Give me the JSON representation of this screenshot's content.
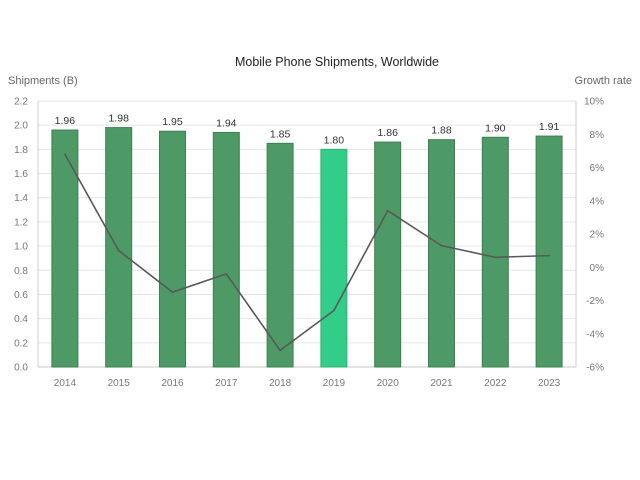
{
  "chart_data": {
    "type": "bar",
    "title": "Mobile Phone Shipments, Worldwide",
    "ylabel": "Shipments (B)",
    "y2label": "Growth rate",
    "categories": [
      "2014",
      "2015",
      "2016",
      "2017",
      "2018",
      "2019",
      "2020",
      "2021",
      "2022",
      "2023"
    ],
    "series": [
      {
        "type": "bar",
        "values": [
          1.96,
          1.98,
          1.95,
          1.94,
          1.85,
          1.8,
          1.86,
          1.88,
          1.9,
          1.91
        ],
        "axis": "left"
      },
      {
        "type": "line",
        "values": [
          6.8,
          1.0,
          -1.5,
          -0.4,
          -5.0,
          -2.6,
          3.4,
          1.3,
          0.6,
          0.7
        ],
        "axis": "right"
      }
    ],
    "data_labels": [
      "1.96",
      "1.98",
      "1.95",
      "1.94",
      "1.85",
      "1.80",
      "1.86",
      "1.88",
      "1.90",
      "1.91"
    ],
    "ylim": [
      0,
      2.2
    ],
    "y2lim": [
      -6,
      10
    ],
    "yticks": [
      "0.0",
      "0.2",
      "0.4",
      "0.6",
      "0.8",
      "1.0",
      "1.2",
      "1.4",
      "1.6",
      "1.8",
      "2.0",
      "2.2"
    ],
    "y2ticks": [
      "-6%",
      "-4%",
      "-2%",
      "0%",
      "2%",
      "4%",
      "6%",
      "8%",
      "10%"
    ],
    "highlight_category": "2019",
    "grid": true,
    "legend": "none",
    "colors": {
      "bar": "#4e9a67",
      "bar_edge": "#3d7f52",
      "bar_highlight": "#33cc88",
      "line": "#595959",
      "grid": "#e6e6e6"
    }
  }
}
